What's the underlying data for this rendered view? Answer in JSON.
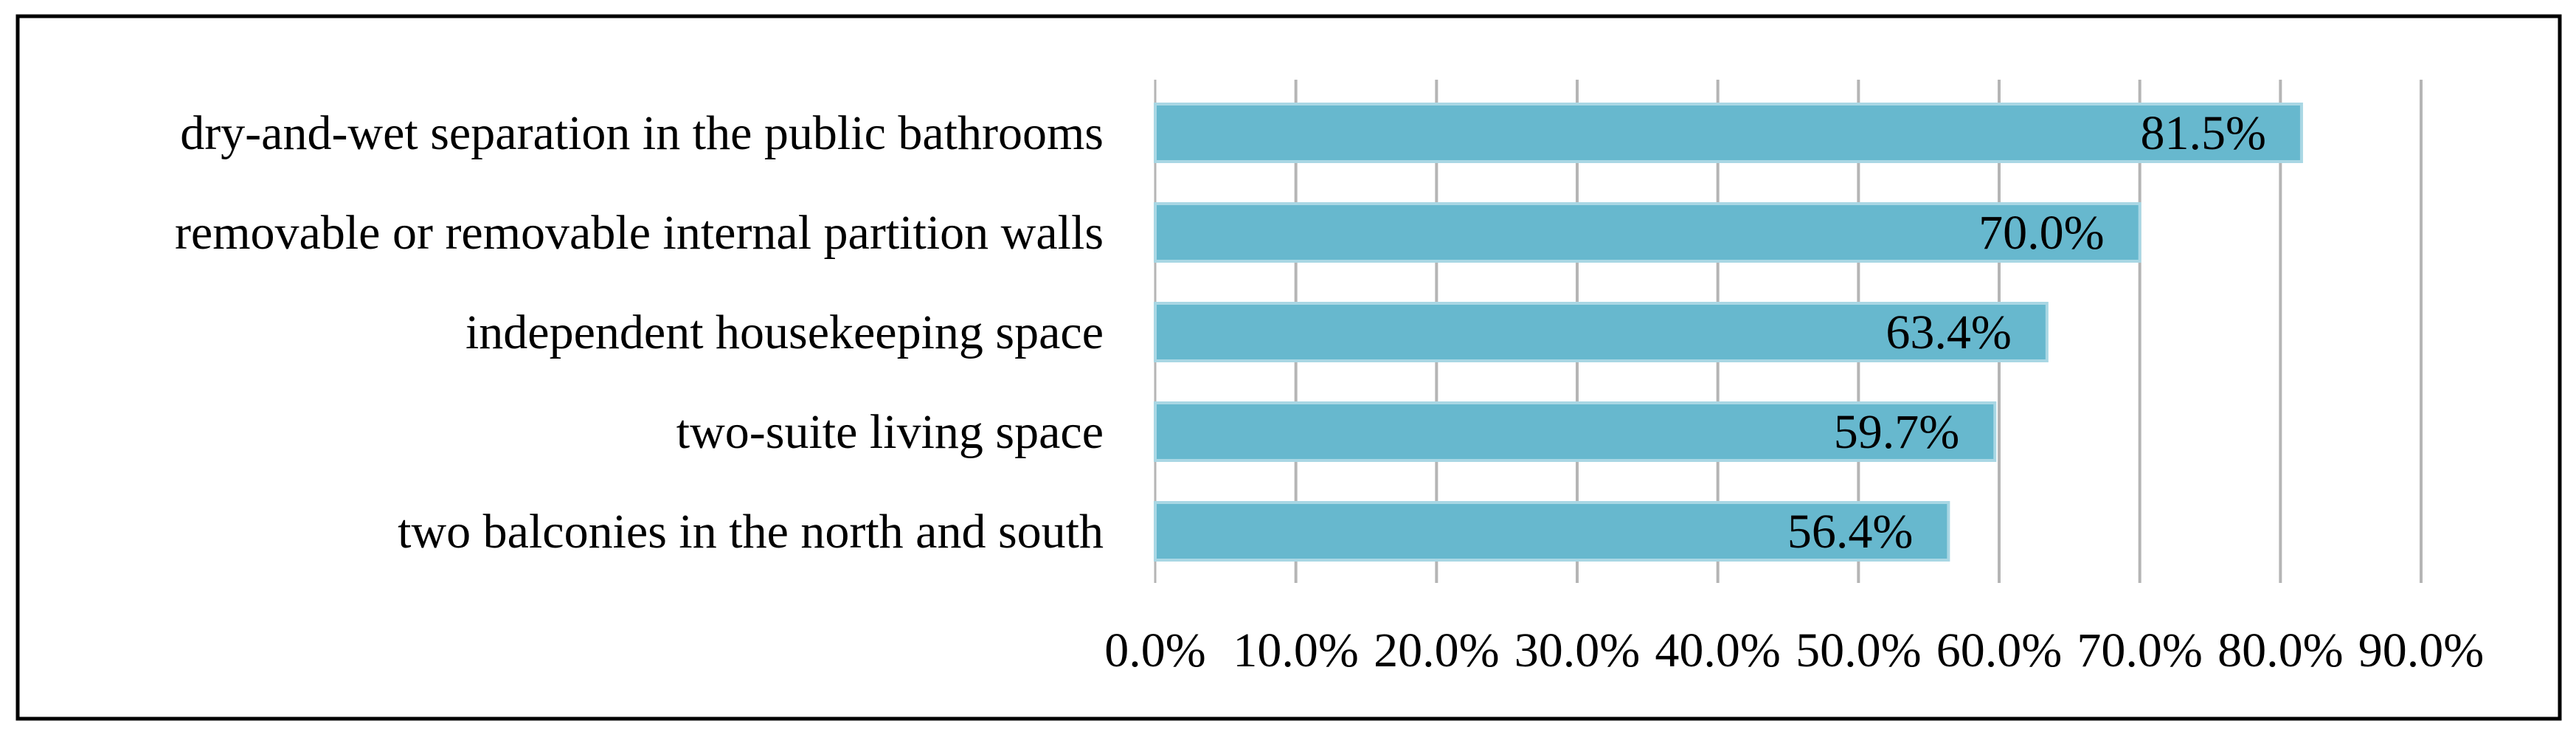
{
  "chart_data": {
    "type": "bar",
    "orientation": "horizontal",
    "categories": [
      "dry-and-wet separation in the public bathrooms",
      "removable or removable internal partition walls",
      "independent housekeeping space",
      "two-suite living space",
      "two balconies in the north and south"
    ],
    "values": [
      81.5,
      70.0,
      63.4,
      59.7,
      56.4
    ],
    "value_labels": [
      "81.5%",
      "70.0%",
      "63.4%",
      "59.7%",
      "56.4%"
    ],
    "x_ticks": [
      0,
      10,
      20,
      30,
      40,
      50,
      60,
      70,
      80,
      90
    ],
    "x_tick_labels": [
      "0.0%",
      "10.0%",
      "20.0%",
      "30.0%",
      "40.0%",
      "50.0%",
      "60.0%",
      "70.0%",
      "80.0%",
      "90.0%"
    ],
    "xlim": [
      0,
      90
    ],
    "grid": "vertical",
    "legend": "none",
    "title": "",
    "xlabel": "",
    "ylabel": "",
    "colors": {
      "bar": "#67b8ce",
      "bar_edge": "#a9d7e4",
      "grid": "#b5b5b5",
      "axis": "#b5b5b5",
      "frame": "#000000",
      "text": "#000000"
    }
  }
}
